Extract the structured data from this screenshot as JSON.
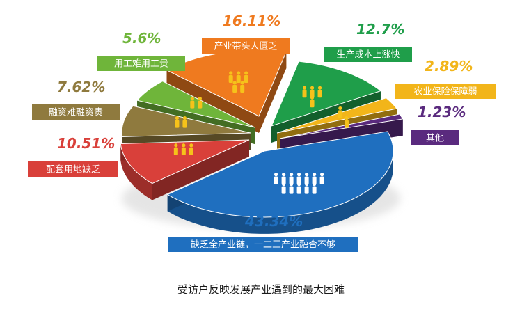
{
  "caption": "受访户反映发展产业遇到的最大困难",
  "chart_data": {
    "type": "pie",
    "title": "受访户反映发展产业遇到的最大困难",
    "slices": [
      {
        "label": "缺乏全产业链，一二三产业融合不够",
        "value": 43.34,
        "display": "43.34%",
        "color": "#1f6fbf",
        "label_color": "#1f6fbf"
      },
      {
        "label": "配套用地缺乏",
        "value": 10.51,
        "display": "10.51%",
        "color": "#d9403a",
        "label_color": "#d9403a"
      },
      {
        "label": "融资难融资贵",
        "value": 7.62,
        "display": "7.62%",
        "color": "#8f7a3e",
        "label_color": "#8f7a3e"
      },
      {
        "label": "用工难用工贵",
        "value": 5.6,
        "display": "5.6%",
        "color": "#6fb53a",
        "label_color": "#6fb53a"
      },
      {
        "label": "产业带头人匮乏",
        "value": 16.11,
        "display": "16.11%",
        "color": "#ef7a1f",
        "label_color": "#ef7a1f"
      },
      {
        "label": "生产成本上涨快",
        "value": 12.7,
        "display": "12.7%",
        "color": "#1f9e4a",
        "label_color": "#1f9e4a"
      },
      {
        "label": "农业保险保障弱",
        "value": 2.89,
        "display": "2.89%",
        "color": "#f2b51a",
        "label_color": "#f2b51a"
      },
      {
        "label": "其他",
        "value": 1.23,
        "display": "1.23%",
        "color": "#5a2a7e",
        "label_color": "#5a2a7e"
      }
    ]
  }
}
